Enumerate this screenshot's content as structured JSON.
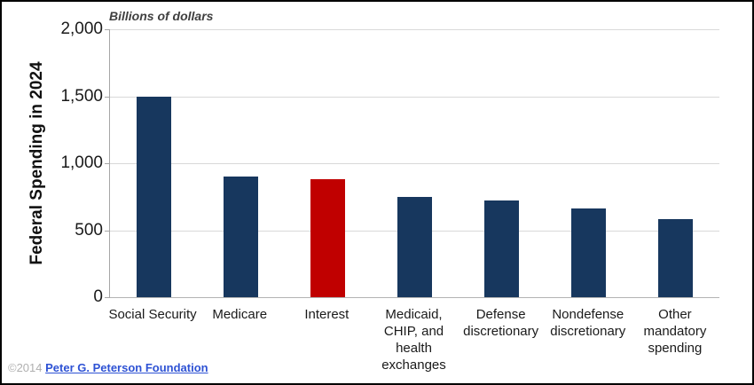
{
  "header": {
    "units_label": "Billions of dollars"
  },
  "chart_data": {
    "type": "bar",
    "title": "",
    "units": "Billions of dollars",
    "ylabel": "Federal Spending in 2024",
    "xlabel": "",
    "ylim": [
      0,
      2000
    ],
    "yticks": [
      0,
      500,
      1000,
      1500,
      2000
    ],
    "ytick_labels": [
      "0",
      "500",
      "1,000",
      "1,500",
      "2,000"
    ],
    "grid": true,
    "legend": "none",
    "categories": [
      "Social Security",
      "Medicare",
      "Interest",
      "Medicaid,\nCHIP, and\nhealth\nexchanges",
      "Defense\ndiscretionary",
      "Nondefense\ndiscretionary",
      "Other\nmandatory\nspending"
    ],
    "values": [
      1500,
      900,
      880,
      750,
      720,
      660,
      585
    ],
    "highlight_category": "Interest",
    "highlight_index": 2
  },
  "colors": {
    "bar_default": "#17375e",
    "bar_highlight": "#c00000",
    "gridline": "#d9d9d9",
    "axis_line": "#a6a6a6",
    "tick_text": "#1a1a1a",
    "link_blue": "#2e52d4",
    "copyright_gray": "#b0b0b0"
  },
  "footer": {
    "copyright": "©2014 ",
    "link_text": "Peter G. Peterson Foundation"
  }
}
